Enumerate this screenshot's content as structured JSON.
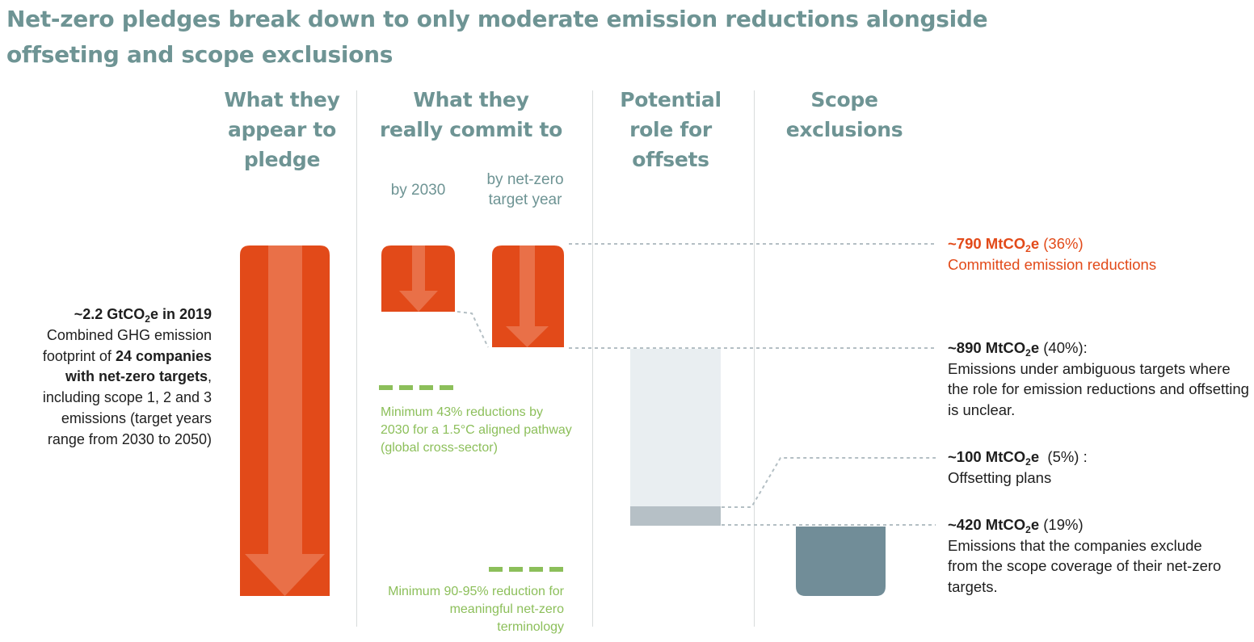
{
  "title": "Net-zero pledges break down to only moderate emission reductions alongside offseting and scope exclusions",
  "columns": [
    "What they appear to pledge",
    "What they really commit to",
    "Potential role for offsets",
    "Scope exclusions"
  ],
  "sub_labels": {
    "by_2030": "by 2030",
    "by_target": "by net-zero target year"
  },
  "left_label": {
    "value_prefix": "~2.2 GtCO",
    "value_sub": "2",
    "value_suffix": "e in 2019",
    "line1": "Combined GHG emission footprint of",
    "bold": "24 companies with net-zero targets",
    "line2": ", including scope 1, 2 and 3 emissions (target years range from 2030 to 2050)"
  },
  "benchmarks": [
    {
      "text": "Minimum 43% reductions by 2030 for a 1.5°C aligned pathway (global cross-sector)"
    },
    {
      "text": "Minimum 90-95% reduction for meaningful net-zero terminology"
    }
  ],
  "annotations": [
    {
      "value_prefix": "~790 MtCO",
      "value_sub": "2",
      "value_suffix": "e",
      "pct": " (36%)",
      "desc": "Committed emission reductions"
    },
    {
      "value_prefix": "~890 MtCO",
      "value_sub": "2",
      "value_suffix": "e",
      "pct": " (40%):",
      "desc": "Emissions under ambiguous targets where the role for emission reductions and offsetting is unclear."
    },
    {
      "value_prefix": "~100 MtCO",
      "value_sub": "2",
      "value_suffix": "e",
      "pct": "  (5%) :",
      "desc": "Offsetting plans"
    },
    {
      "value_prefix": "~420 MtCO",
      "value_sub": "2",
      "value_suffix": "e",
      "pct": " (19%)",
      "desc": "Emissions that the companies exclude from the scope coverage of their net-zero targets."
    }
  ],
  "colors": {
    "orange": "#e24a19",
    "arrow": "#e97048",
    "teal_text": "#6e9494",
    "green": "#8cbf5a",
    "ambiguous": "#e9eef1",
    "offsets": "#b6c0c6",
    "exclusions": "#718d98"
  },
  "chart_data": {
    "type": "bar",
    "unit": "MtCO2e",
    "total": 2200,
    "segments": [
      {
        "name": "Committed emission reductions",
        "value": 790,
        "pct": 36
      },
      {
        "name": "Emissions under ambiguous targets",
        "value": 890,
        "pct": 40
      },
      {
        "name": "Offsetting plans",
        "value": 100,
        "pct": 5
      },
      {
        "name": "Scope exclusions",
        "value": 420,
        "pct": 19
      }
    ]
  }
}
